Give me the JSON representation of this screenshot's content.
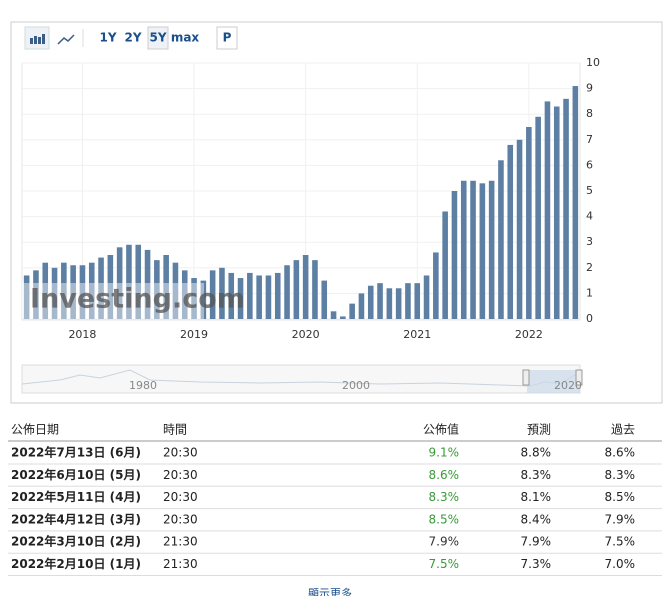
{
  "toolbar": {
    "buttons": [
      "1Y",
      "2Y",
      "5Y",
      "max",
      "P"
    ]
  },
  "chart_data": {
    "type": "bar",
    "categories": [
      null,
      null,
      null,
      null,
      null,
      null,
      "2018",
      null,
      null,
      null,
      null,
      null,
      null,
      null,
      null,
      null,
      null,
      null,
      "2019",
      null,
      null,
      null,
      null,
      null,
      null,
      null,
      null,
      null,
      null,
      null,
      "2020",
      null,
      null,
      null,
      null,
      null,
      null,
      null,
      null,
      null,
      null,
      null,
      "2021",
      null,
      null,
      null,
      null,
      null,
      null,
      null,
      null,
      null,
      null,
      null,
      "2022",
      null,
      null,
      null,
      null,
      null
    ],
    "values": [
      1.7,
      1.9,
      2.2,
      2.0,
      2.2,
      2.1,
      2.1,
      2.2,
      2.4,
      2.5,
      2.8,
      2.9,
      2.9,
      2.7,
      2.3,
      2.5,
      2.2,
      1.9,
      1.6,
      1.5,
      1.9,
      2.0,
      1.8,
      1.6,
      1.8,
      1.7,
      1.7,
      1.8,
      2.1,
      2.3,
      2.5,
      2.3,
      1.5,
      0.3,
      0.1,
      0.6,
      1.0,
      1.3,
      1.4,
      1.2,
      1.2,
      1.4,
      1.4,
      1.7,
      2.6,
      4.2,
      5.0,
      5.4,
      5.4,
      5.3,
      5.4,
      6.2,
      6.8,
      7.0,
      7.5,
      7.9,
      8.5,
      8.3,
      8.6,
      9.1
    ],
    "color": "#5d7fa3",
    "ylim": [
      0,
      10
    ],
    "yticks": [
      0,
      1,
      2,
      3,
      4,
      5,
      6,
      7,
      8,
      9,
      10
    ],
    "grid": true
  },
  "watermark": "Investing.com",
  "navigator": {
    "labels": [
      "1980",
      "2000",
      "2020"
    ]
  },
  "table": {
    "header": [
      "公佈日期",
      "時間",
      "公佈值",
      "預測",
      "過去"
    ],
    "rows": [
      [
        "2022年7月13日 (6月)",
        "20:30",
        "9.1%",
        "8.8%",
        "8.6%"
      ],
      [
        "2022年6月10日 (5月)",
        "20:30",
        "8.6%",
        "8.3%",
        "8.3%"
      ],
      [
        "2022年5月11日 (4月)",
        "20:30",
        "8.3%",
        "8.1%",
        "8.5%"
      ],
      [
        "2022年4月12日 (3月)",
        "20:30",
        "8.5%",
        "8.4%",
        "7.9%"
      ],
      [
        "2022年3月10日 (2月)",
        "21:30",
        "7.9%",
        "7.9%",
        "7.5%"
      ],
      [
        "2022年2月10日 (1月)",
        "21:30",
        "7.5%",
        "7.3%",
        "7.0%"
      ]
    ],
    "actual_colors": [
      "#3a9a3a",
      "#3a9a3a",
      "#3a9a3a",
      "#3a9a3a",
      "#333333",
      "#3a9a3a"
    ]
  },
  "show_more": "顯示更多"
}
